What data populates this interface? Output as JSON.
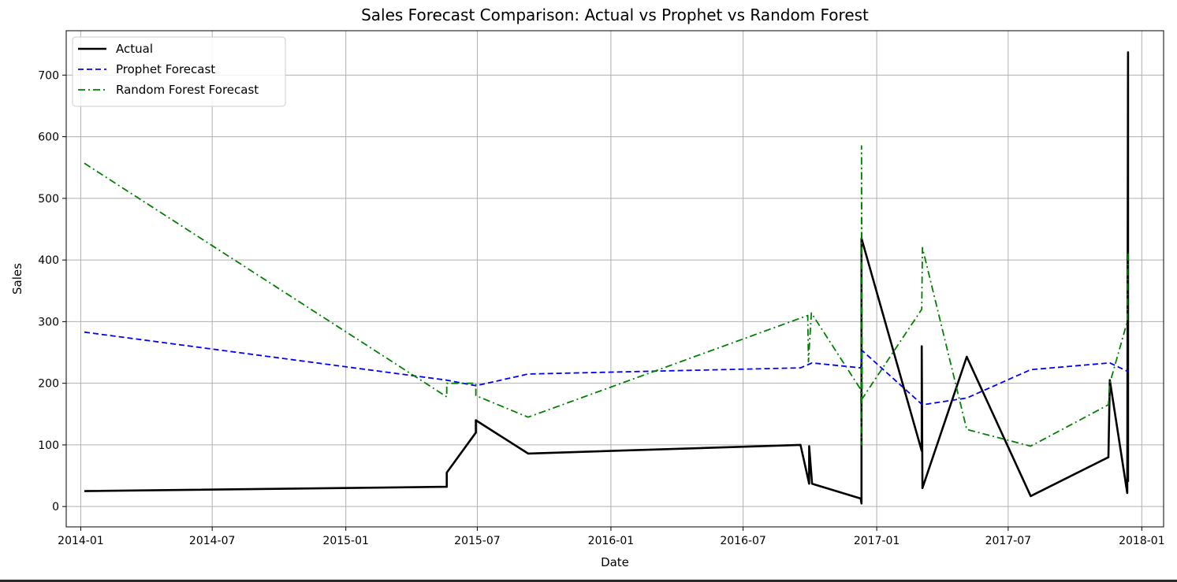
{
  "chart_data": {
    "type": "line",
    "title": "Sales Forecast Comparison: Actual vs Prophet vs Random Forest",
    "xlabel": "Date",
    "ylabel": "Sales",
    "xlim": [
      "2013-12-12",
      "2018-01-31"
    ],
    "ylim": [
      -33,
      772
    ],
    "x_ticks": [
      "2014-01",
      "2014-07",
      "2015-01",
      "2015-07",
      "2016-01",
      "2016-07",
      "2017-01",
      "2017-07",
      "2018-01"
    ],
    "y_ticks": [
      0,
      100,
      200,
      300,
      400,
      500,
      600,
      700
    ],
    "grid": true,
    "legend_position": "top-left",
    "series": [
      {
        "name": "Actual",
        "color": "#000000",
        "style": "solid",
        "points": [
          [
            "2014-01-06",
            25
          ],
          [
            "2015-05-20",
            32
          ],
          [
            "2015-05-20",
            55
          ],
          [
            "2015-06-29",
            120
          ],
          [
            "2015-06-29",
            140
          ],
          [
            "2015-09-09",
            86
          ],
          [
            "2016-09-18",
            100
          ],
          [
            "2016-09-30",
            37
          ],
          [
            "2016-09-30",
            98
          ],
          [
            "2016-10-04",
            37
          ],
          [
            "2016-12-10",
            13
          ],
          [
            "2016-12-11",
            5
          ],
          [
            "2016-12-11",
            435
          ],
          [
            "2017-03-04",
            90
          ],
          [
            "2017-03-04",
            260
          ],
          [
            "2017-03-05",
            30
          ],
          [
            "2017-05-05",
            243
          ],
          [
            "2017-08-01",
            17
          ],
          [
            "2017-11-16",
            80
          ],
          [
            "2017-11-18",
            205
          ],
          [
            "2017-12-12",
            22
          ],
          [
            "2017-12-13",
            737
          ],
          [
            "2017-12-13",
            40
          ]
        ]
      },
      {
        "name": "Prophet Forecast",
        "color": "#0000ff",
        "style": "dashed",
        "points": [
          [
            "2014-01-06",
            283
          ],
          [
            "2015-05-20",
            205
          ],
          [
            "2015-06-29",
            196
          ],
          [
            "2015-09-09",
            215
          ],
          [
            "2016-09-18",
            225
          ],
          [
            "2016-10-04",
            233
          ],
          [
            "2016-12-10",
            225
          ],
          [
            "2016-12-12",
            253
          ],
          [
            "2017-03-05",
            165
          ],
          [
            "2017-05-05",
            176
          ],
          [
            "2017-08-01",
            222
          ],
          [
            "2017-11-18",
            233
          ],
          [
            "2017-12-13",
            219
          ]
        ]
      },
      {
        "name": "Random Forest Forecast",
        "color": "#008000",
        "style": "dashdot",
        "points": [
          [
            "2014-01-06",
            557
          ],
          [
            "2015-05-20",
            178
          ],
          [
            "2015-05-20",
            200
          ],
          [
            "2015-06-29",
            200
          ],
          [
            "2015-06-29",
            180
          ],
          [
            "2015-09-09",
            145
          ],
          [
            "2016-09-28",
            310
          ],
          [
            "2016-09-29",
            235
          ],
          [
            "2016-10-03",
            314
          ],
          [
            "2016-12-10",
            190
          ],
          [
            "2016-12-11",
            100
          ],
          [
            "2016-12-11",
            585
          ],
          [
            "2016-12-12",
            175
          ],
          [
            "2017-03-04",
            320
          ],
          [
            "2017-03-05",
            420
          ],
          [
            "2017-05-05",
            125
          ],
          [
            "2017-08-01",
            98
          ],
          [
            "2017-11-16",
            165
          ],
          [
            "2017-11-18",
            200
          ],
          [
            "2017-12-12",
            300
          ],
          [
            "2017-12-13",
            415
          ]
        ]
      }
    ]
  }
}
